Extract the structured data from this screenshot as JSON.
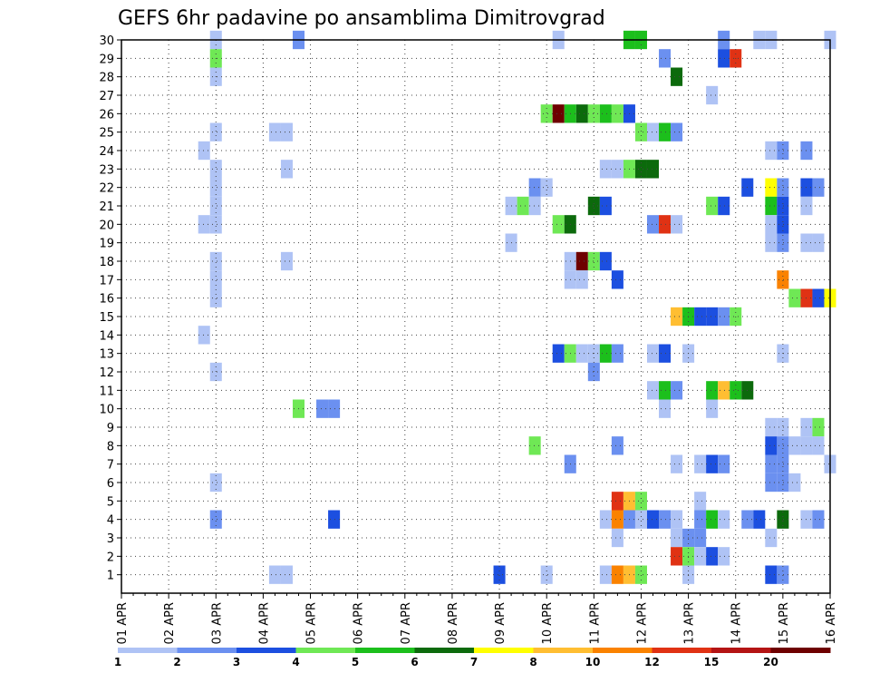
{
  "chart_data": {
    "type": "heatmap",
    "title": "GEFS 6hr padavine po ansamblima Dimitrovgrad",
    "x_tick_labels": [
      "01 APR",
      "02 APR",
      "03 APR",
      "04 APR",
      "05 APR",
      "06 APR",
      "07 APR",
      "08 APR",
      "09 APR",
      "10 APR",
      "11 APR",
      "12 APR",
      "13 APR",
      "14 APR",
      "15 APR",
      "16 APR"
    ],
    "x_range_days": [
      0,
      15
    ],
    "y_tick_labels": [
      "1",
      "2",
      "3",
      "4",
      "5",
      "6",
      "7",
      "8",
      "9",
      "10",
      "11",
      "12",
      "13",
      "14",
      "15",
      "16",
      "17",
      "18",
      "19",
      "20",
      "21",
      "22",
      "23",
      "24",
      "25",
      "26",
      "27",
      "28",
      "29",
      "30"
    ],
    "y_range_members": [
      0,
      30
    ],
    "grid": true,
    "legend": {
      "placement": "bottom",
      "labels": [
        "1",
        "2",
        "3",
        "4",
        "5",
        "6",
        "7",
        "8",
        "10",
        "12",
        "15",
        "20"
      ],
      "colors": [
        "#afc3f5",
        "#6b90f0",
        "#1c4fe0",
        "#6fe855",
        "#1cbf1c",
        "#0c6a0c",
        "#ffff00",
        "#ffbe32",
        "#fa8200",
        "#e03214",
        "#b41414",
        "#6e0000"
      ]
    },
    "colors": [
      "#afc3f5",
      "#6b90f0",
      "#1c4fe0",
      "#6fe855",
      "#1cbf1c",
      "#0c6a0c",
      "#ffff00",
      "#ffbe32",
      "#fa8200",
      "#e03214",
      "#b41414",
      "#6e0000"
    ],
    "cells": [
      [
        2.0,
        30,
        0
      ],
      [
        3.75,
        30,
        1
      ],
      [
        9.25,
        30,
        0
      ],
      [
        10.75,
        30,
        4
      ],
      [
        11.0,
        30,
        4
      ],
      [
        12.75,
        30,
        1
      ],
      [
        13.5,
        30,
        0
      ],
      [
        13.75,
        30,
        0
      ],
      [
        15.0,
        30,
        0
      ],
      [
        2.0,
        29,
        3
      ],
      [
        11.5,
        29,
        1
      ],
      [
        12.75,
        29,
        2
      ],
      [
        13.0,
        29,
        9
      ],
      [
        2.0,
        28,
        0
      ],
      [
        11.75,
        28,
        5
      ],
      [
        12.5,
        27,
        0
      ],
      [
        9.0,
        26,
        3
      ],
      [
        9.25,
        26,
        11
      ],
      [
        9.5,
        26,
        4
      ],
      [
        9.75,
        26,
        5
      ],
      [
        10.0,
        26,
        3
      ],
      [
        10.25,
        26,
        4
      ],
      [
        10.5,
        26,
        3
      ],
      [
        10.75,
        26,
        2
      ],
      [
        2.0,
        25,
        0
      ],
      [
        3.25,
        25,
        0
      ],
      [
        3.5,
        25,
        0
      ],
      [
        11.0,
        25,
        3
      ],
      [
        11.25,
        25,
        0
      ],
      [
        11.5,
        25,
        4
      ],
      [
        11.75,
        25,
        1
      ],
      [
        1.75,
        24,
        0
      ],
      [
        13.75,
        24,
        0
      ],
      [
        14.0,
        24,
        1
      ],
      [
        14.5,
        24,
        1
      ],
      [
        2.0,
        23,
        0
      ],
      [
        3.5,
        23,
        0
      ],
      [
        10.25,
        23,
        0
      ],
      [
        10.5,
        23,
        0
      ],
      [
        10.75,
        23,
        3
      ],
      [
        11.0,
        23,
        5
      ],
      [
        11.25,
        23,
        5
      ],
      [
        2.0,
        22,
        0
      ],
      [
        8.75,
        22,
        1
      ],
      [
        9.0,
        22,
        0
      ],
      [
        13.25,
        22,
        2
      ],
      [
        13.75,
        22,
        6
      ],
      [
        14.0,
        22,
        1
      ],
      [
        14.5,
        22,
        2
      ],
      [
        14.75,
        22,
        1
      ],
      [
        2.0,
        21,
        0
      ],
      [
        8.25,
        21,
        0
      ],
      [
        8.5,
        21,
        3
      ],
      [
        8.75,
        21,
        0
      ],
      [
        10.0,
        21,
        5
      ],
      [
        10.25,
        21,
        2
      ],
      [
        12.5,
        21,
        3
      ],
      [
        12.75,
        21,
        2
      ],
      [
        13.75,
        21,
        4
      ],
      [
        14.0,
        21,
        2
      ],
      [
        14.5,
        21,
        0
      ],
      [
        1.75,
        20,
        0
      ],
      [
        2.0,
        20,
        0
      ],
      [
        9.25,
        20,
        3
      ],
      [
        9.5,
        20,
        5
      ],
      [
        11.25,
        20,
        1
      ],
      [
        11.5,
        20,
        9
      ],
      [
        11.75,
        20,
        0
      ],
      [
        13.75,
        20,
        0
      ],
      [
        14.0,
        20,
        2
      ],
      [
        13.75,
        19,
        0
      ],
      [
        14.0,
        19,
        1
      ],
      [
        14.5,
        19,
        0
      ],
      [
        14.75,
        19,
        0
      ],
      [
        8.25,
        19,
        0
      ],
      [
        2.0,
        18,
        0
      ],
      [
        3.5,
        18,
        0
      ],
      [
        9.5,
        18,
        0
      ],
      [
        9.75,
        18,
        11
      ],
      [
        10.0,
        18,
        3
      ],
      [
        10.25,
        18,
        2
      ],
      [
        2.0,
        17,
        0
      ],
      [
        9.5,
        17,
        0
      ],
      [
        9.75,
        17,
        0
      ],
      [
        10.5,
        17,
        2
      ],
      [
        14.0,
        17,
        8
      ],
      [
        14.25,
        16,
        3
      ],
      [
        14.5,
        16,
        9
      ],
      [
        14.75,
        16,
        2
      ],
      [
        15.0,
        16,
        6
      ],
      [
        2.0,
        16,
        0
      ],
      [
        11.75,
        15,
        7
      ],
      [
        12.0,
        15,
        4
      ],
      [
        12.25,
        15,
        2
      ],
      [
        12.5,
        15,
        2
      ],
      [
        12.75,
        15,
        1
      ],
      [
        13.0,
        15,
        3
      ],
      [
        1.75,
        14,
        0
      ],
      [
        9.25,
        13,
        2
      ],
      [
        9.5,
        13,
        3
      ],
      [
        9.75,
        13,
        0
      ],
      [
        10.0,
        13,
        0
      ],
      [
        10.25,
        13,
        4
      ],
      [
        10.5,
        13,
        1
      ],
      [
        11.25,
        13,
        0
      ],
      [
        11.5,
        13,
        2
      ],
      [
        12.0,
        13,
        0
      ],
      [
        14.0,
        13,
        0
      ],
      [
        2.0,
        12,
        0
      ],
      [
        10.0,
        12,
        1
      ],
      [
        11.25,
        11,
        0
      ],
      [
        11.5,
        11,
        4
      ],
      [
        11.75,
        11,
        1
      ],
      [
        12.5,
        11,
        4
      ],
      [
        12.75,
        11,
        7
      ],
      [
        13.0,
        11,
        4
      ],
      [
        13.25,
        11,
        5
      ],
      [
        3.75,
        10,
        3
      ],
      [
        4.25,
        10,
        1
      ],
      [
        4.5,
        10,
        1
      ],
      [
        11.5,
        10,
        0
      ],
      [
        12.5,
        10,
        0
      ],
      [
        13.75,
        9,
        0
      ],
      [
        14.0,
        9,
        0
      ],
      [
        14.5,
        9,
        0
      ],
      [
        14.75,
        9,
        3
      ],
      [
        8.75,
        8,
        3
      ],
      [
        10.5,
        8,
        1
      ],
      [
        13.75,
        8,
        2
      ],
      [
        14.0,
        8,
        1
      ],
      [
        14.25,
        8,
        0
      ],
      [
        14.5,
        8,
        0
      ],
      [
        14.75,
        8,
        0
      ],
      [
        9.5,
        7,
        1
      ],
      [
        11.75,
        7,
        0
      ],
      [
        12.25,
        7,
        0
      ],
      [
        12.5,
        7,
        2
      ],
      [
        12.75,
        7,
        1
      ],
      [
        13.75,
        7,
        1
      ],
      [
        14.0,
        7,
        1
      ],
      [
        15.0,
        7,
        0
      ],
      [
        2.0,
        6,
        0
      ],
      [
        13.75,
        6,
        1
      ],
      [
        14.0,
        6,
        1
      ],
      [
        14.25,
        6,
        0
      ],
      [
        10.5,
        5,
        9
      ],
      [
        10.75,
        5,
        7
      ],
      [
        11.0,
        5,
        3
      ],
      [
        12.25,
        5,
        0
      ],
      [
        2.0,
        4,
        1
      ],
      [
        4.5,
        4,
        2
      ],
      [
        10.25,
        4,
        0
      ],
      [
        10.5,
        4,
        8
      ],
      [
        10.75,
        4,
        1
      ],
      [
        11.0,
        4,
        0
      ],
      [
        11.25,
        4,
        2
      ],
      [
        11.5,
        4,
        1
      ],
      [
        11.75,
        4,
        0
      ],
      [
        12.25,
        4,
        1
      ],
      [
        12.5,
        4,
        4
      ],
      [
        12.75,
        4,
        0
      ],
      [
        13.25,
        4,
        1
      ],
      [
        13.5,
        4,
        2
      ],
      [
        14.0,
        4,
        5
      ],
      [
        14.5,
        4,
        0
      ],
      [
        14.75,
        4,
        1
      ],
      [
        10.5,
        3,
        0
      ],
      [
        11.75,
        3,
        0
      ],
      [
        12.0,
        3,
        1
      ],
      [
        12.25,
        3,
        1
      ],
      [
        13.75,
        3,
        0
      ],
      [
        11.75,
        2,
        9
      ],
      [
        12.0,
        2,
        3
      ],
      [
        12.25,
        2,
        0
      ],
      [
        12.5,
        2,
        2
      ],
      [
        12.75,
        2,
        0
      ],
      [
        3.25,
        1,
        0
      ],
      [
        3.5,
        1,
        0
      ],
      [
        8.0,
        1,
        2
      ],
      [
        9.0,
        1,
        0
      ],
      [
        10.25,
        1,
        0
      ],
      [
        10.5,
        1,
        8
      ],
      [
        10.75,
        1,
        7
      ],
      [
        11.0,
        1,
        3
      ],
      [
        12.0,
        1,
        0
      ],
      [
        13.75,
        1,
        2
      ],
      [
        14.0,
        1,
        1
      ]
    ]
  }
}
